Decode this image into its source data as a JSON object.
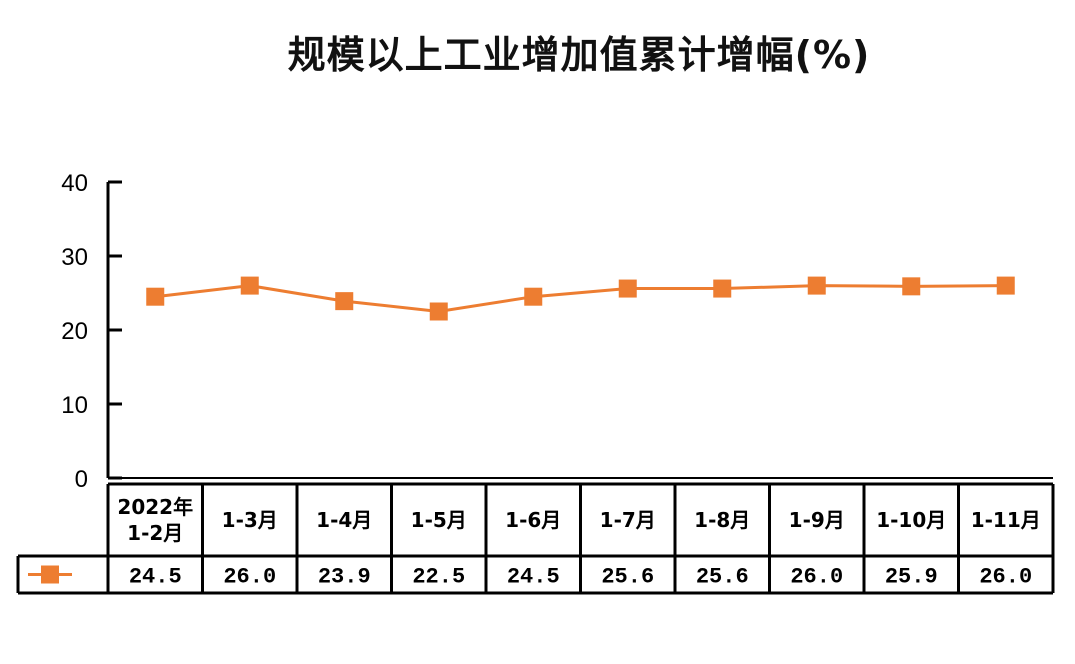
{
  "chart_data": {
    "type": "line",
    "title": "规模以上工业增加值累计增幅(%)",
    "categories": [
      [
        "2022年",
        "1-2月"
      ],
      [
        "1-3月"
      ],
      [
        "1-4月"
      ],
      [
        "1-5月"
      ],
      [
        "1-6月"
      ],
      [
        "1-7月"
      ],
      [
        "1-8月"
      ],
      [
        "1-9月"
      ],
      [
        "1-10月"
      ],
      [
        "1-11月"
      ]
    ],
    "series": [
      {
        "values": [
          24.5,
          26.0,
          23.9,
          22.5,
          24.5,
          25.6,
          25.6,
          26.0,
          25.9,
          26.0
        ],
        "value_labels": [
          "24.5",
          "26.0",
          "23.9",
          "22.5",
          "24.5",
          "25.6",
          "25.6",
          "26.0",
          "25.9",
          "26.0"
        ],
        "color": "#ED7D31",
        "marker": "square"
      }
    ],
    "ylim": [
      0,
      40
    ],
    "yticks": [
      "0",
      "10",
      "20",
      "30",
      "40"
    ],
    "grid": false,
    "legend": "data-table"
  }
}
